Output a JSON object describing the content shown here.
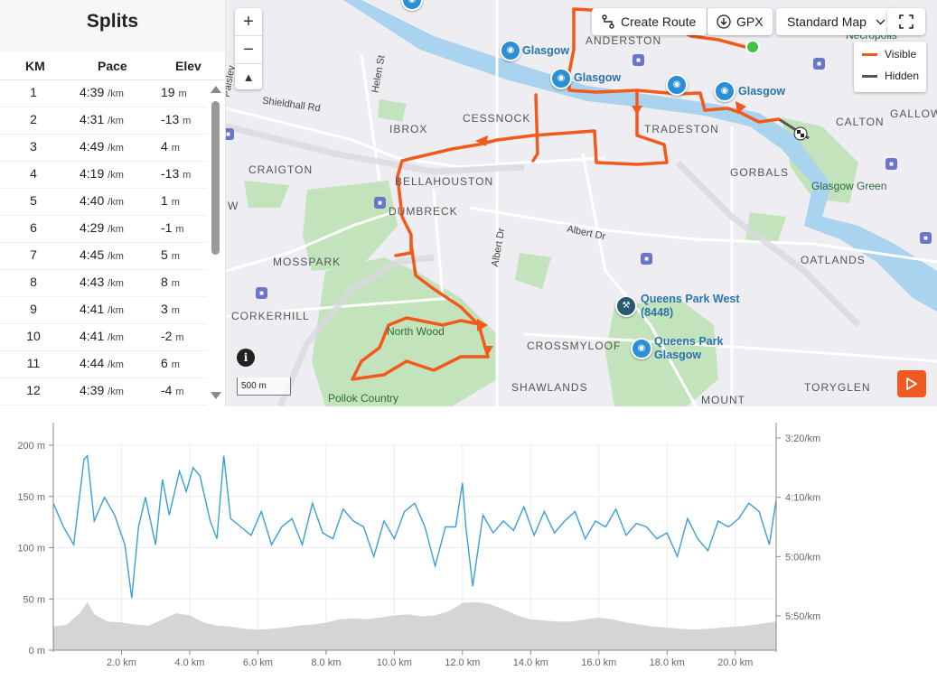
{
  "splits": {
    "title": "Splits",
    "headers": {
      "km": "KM",
      "pace": "Pace",
      "elev": "Elev"
    },
    "pace_unit": "/km",
    "elev_unit": "m",
    "rows": [
      {
        "km": "1",
        "pace": "4:39",
        "elev": "19"
      },
      {
        "km": "2",
        "pace": "4:31",
        "elev": "-13"
      },
      {
        "km": "3",
        "pace": "4:49",
        "elev": "4"
      },
      {
        "km": "4",
        "pace": "4:19",
        "elev": "-13"
      },
      {
        "km": "5",
        "pace": "4:40",
        "elev": "1"
      },
      {
        "km": "6",
        "pace": "4:29",
        "elev": "-1"
      },
      {
        "km": "7",
        "pace": "4:45",
        "elev": "5"
      },
      {
        "km": "8",
        "pace": "4:43",
        "elev": "8"
      },
      {
        "km": "9",
        "pace": "4:41",
        "elev": "3"
      },
      {
        "km": "10",
        "pace": "4:41",
        "elev": "-2"
      },
      {
        "km": "11",
        "pace": "4:44",
        "elev": "6"
      },
      {
        "km": "12",
        "pace": "4:39",
        "elev": "-4"
      }
    ]
  },
  "map": {
    "controls": {
      "zoom_in": "+",
      "zoom_out": "−",
      "create_route": "Create Route",
      "gpx": "GPX",
      "map_style": "Standard Map"
    },
    "legend": {
      "visible": "Visible",
      "hidden": "Hidden"
    },
    "scale": "500 m",
    "info": "i",
    "places": {
      "anderston": "ANDERSTON",
      "necropolis": "Necropolis",
      "calton": "CALTON",
      "gallowgate": "GALLOW",
      "cessnock": "CESSNOCK",
      "ibrox": "IBROX",
      "tradeston": "TRADESTON",
      "gorbals": "GORBALS",
      "craigton": "CRAIGTON",
      "bellahouston": "BELLAHOUSTON",
      "dumbreck": "DUMBRECK",
      "glasgow_green": "Glasgow Green",
      "mosspark": "MOSSPARK",
      "oatlands": "OATLANDS",
      "corkerhill": "CORKERHILL",
      "north_wood": "North Wood",
      "crossmyloof": "CROSSMYLOOF",
      "shawlands": "SHAWLANDS",
      "pollok": "Pollok Country",
      "mount": "MOUNT",
      "toryglen": "TORYGLEN",
      "w": "W"
    },
    "streets": {
      "shieldhall": "Shieldhall Rd",
      "helen": "Helen St",
      "albert_dr": "Albert Dr",
      "albert_dr_2": "Albert Dr",
      "paisley": "Paisley"
    },
    "pois": {
      "glasgow_1": "Glasgow",
      "glasgow_2": "Glasgow",
      "glasgow_3": "Glasgow",
      "qp_west_1": "Queens Park West",
      "qp_west_2": "(8448)",
      "qp_glasgow_1": "Queens Park",
      "qp_glasgow_2": "Glasgow"
    },
    "colors": {
      "route": "#f25a1b",
      "hidden": "#555555",
      "start": "#3cc43c",
      "water": "#a9d3ee",
      "park": "#b6deb0"
    }
  },
  "chart_data": {
    "type": "line",
    "title": "",
    "x_ticks": [
      "2.0 km",
      "4.0 km",
      "6.0 km",
      "8.0 km",
      "10.0 km",
      "12.0 km",
      "14.0 km",
      "16.0 km",
      "18.0 km",
      "20.0 km"
    ],
    "x_tick_values": [
      2,
      4,
      6,
      8,
      10,
      12,
      14,
      16,
      18,
      20
    ],
    "xlim": [
      0,
      21.2
    ],
    "y_left_ticks": [
      "0 m",
      "50 m",
      "100 m",
      "150 m",
      "200 m"
    ],
    "y_left_values": [
      0,
      50,
      100,
      150,
      200
    ],
    "ylim_left": [
      0,
      200
    ],
    "y_right_ticks": [
      "3:20/km",
      "4:10/km",
      "5:00/km",
      "5:50/km"
    ],
    "y_right_values_sec": [
      200,
      250,
      300,
      350
    ],
    "grid": true,
    "series": [
      {
        "axis": "left",
        "color": "#d5d5d5",
        "x": [
          0,
          0.4,
          0.8,
          1.0,
          1.2,
          1.6,
          2.0,
          2.4,
          2.8,
          3.2,
          3.6,
          4.0,
          4.4,
          4.8,
          5.2,
          5.6,
          6.0,
          6.4,
          6.8,
          7.2,
          7.6,
          8.0,
          8.4,
          8.8,
          9.2,
          9.6,
          10.0,
          10.4,
          10.8,
          11.2,
          11.6,
          12.0,
          12.4,
          12.8,
          13.2,
          13.6,
          14.0,
          14.4,
          14.8,
          15.2,
          15.6,
          16.0,
          16.4,
          16.8,
          17.2,
          17.6,
          18.0,
          18.4,
          18.8,
          19.2,
          19.6,
          20.0,
          20.4,
          20.8,
          21.2
        ],
        "values": [
          23,
          25,
          37,
          47,
          35,
          28,
          27,
          25,
          24,
          30,
          36,
          34,
          27,
          24,
          23,
          21,
          20,
          21,
          22,
          24,
          25,
          27,
          30,
          31,
          30,
          32,
          34,
          35,
          33,
          34,
          38,
          46,
          47,
          45,
          40,
          34,
          30,
          29,
          28,
          28,
          30,
          32,
          30,
          27,
          25,
          23,
          22,
          21,
          20,
          21,
          22,
          23,
          24,
          26,
          28
        ]
      },
      {
        "axis": "right",
        "color": "#3a9fd6",
        "x": [
          0.0,
          0.3,
          0.6,
          0.9,
          1.0,
          1.2,
          1.5,
          1.8,
          2.1,
          2.3,
          2.5,
          2.7,
          3.0,
          3.2,
          3.4,
          3.7,
          3.9,
          4.1,
          4.3,
          4.6,
          4.8,
          5.0,
          5.2,
          5.5,
          5.8,
          6.1,
          6.4,
          6.7,
          7.0,
          7.3,
          7.6,
          7.9,
          8.2,
          8.5,
          8.8,
          9.1,
          9.4,
          9.7,
          10.0,
          10.3,
          10.6,
          10.9,
          11.2,
          11.5,
          11.8,
          12.0,
          12.1,
          12.3,
          12.6,
          12.9,
          13.2,
          13.5,
          13.8,
          14.1,
          14.4,
          14.7,
          15.0,
          15.3,
          15.6,
          15.9,
          16.2,
          16.5,
          16.8,
          17.1,
          17.4,
          17.7,
          18.0,
          18.3,
          18.6,
          18.9,
          19.2,
          19.5,
          19.8,
          20.1,
          20.4,
          20.7,
          21.0,
          21.2
        ],
        "values": [
          255,
          275,
          290,
          218,
          215,
          270,
          250,
          265,
          290,
          335,
          275,
          250,
          290,
          235,
          265,
          228,
          245,
          225,
          232,
          270,
          285,
          215,
          268,
          275,
          282,
          262,
          290,
          275,
          268,
          290,
          255,
          280,
          285,
          260,
          270,
          275,
          300,
          270,
          285,
          262,
          255,
          275,
          308,
          275,
          275,
          238,
          275,
          325,
          265,
          280,
          270,
          278,
          258,
          282,
          262,
          280,
          270,
          262,
          285,
          270,
          275,
          260,
          282,
          272,
          275,
          285,
          280,
          300,
          268,
          285,
          295,
          270,
          275,
          268,
          255,
          262,
          290,
          252
        ]
      }
    ]
  }
}
